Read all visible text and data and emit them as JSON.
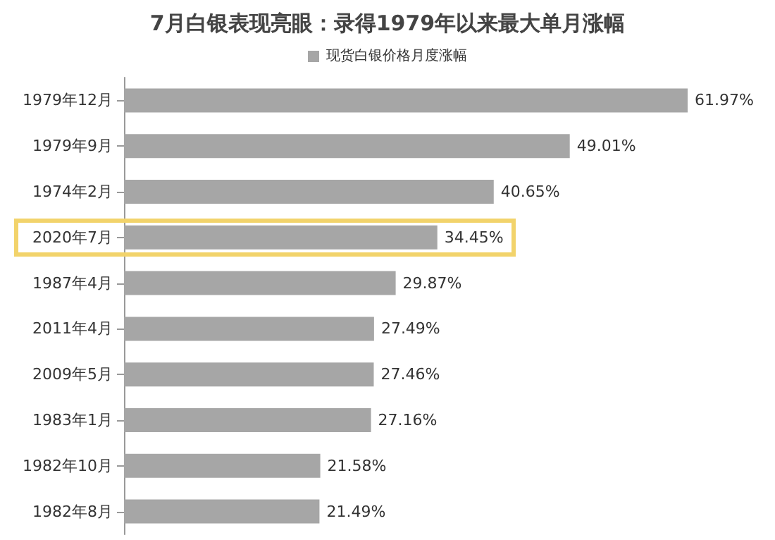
{
  "chart_data": {
    "type": "bar",
    "orientation": "horizontal",
    "title": "7月白银表现亮眼：录得1979年以来最大单月涨幅",
    "categories": [
      "1979年12月",
      "1979年9月",
      "1974年2月",
      "2020年7月",
      "1987年4月",
      "2011年4月",
      "2009年5月",
      "1983年1月",
      "1982年10月",
      "1982年8月"
    ],
    "series": [
      {
        "name": "现货白银价格月度涨幅",
        "color": "#a6a6a6",
        "values": [
          61.97,
          49.01,
          40.65,
          34.45,
          29.87,
          27.49,
          27.46,
          27.16,
          21.58,
          21.49
        ],
        "value_labels": [
          "61.97%",
          "49.01%",
          "40.65%",
          "34.45%",
          "29.87%",
          "27.49%",
          "27.46%",
          "27.16%",
          "21.58%",
          "21.49%"
        ]
      }
    ],
    "legend": "top"
  }
}
